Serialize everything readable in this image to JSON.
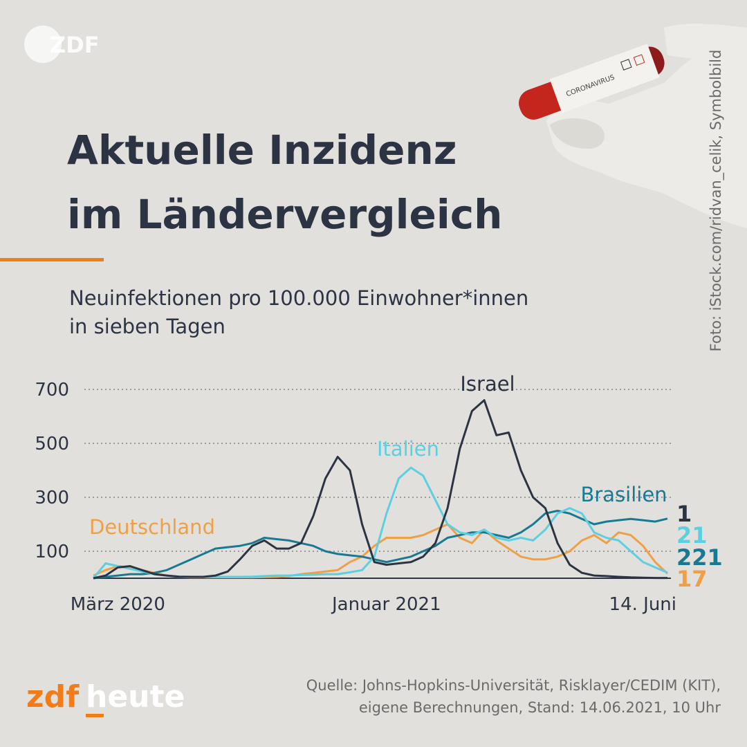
{
  "header": {
    "logo": "ZDF",
    "title": [
      "Aktuelle Inzidenz",
      "im Ländervergleich"
    ],
    "subtitle": [
      "Neuinfektionen pro 100.000 Einwohner*innen",
      "in sieben Tagen"
    ],
    "photo_credit": "Foto: iStock.com/ridvan_celik, Symbolbild",
    "photo_label": "CORONAVIRUS"
  },
  "chart_data": {
    "type": "line",
    "categories": [
      null,
      null,
      "März 2020",
      null,
      null,
      null,
      null,
      null,
      null,
      null,
      null,
      null,
      null,
      null,
      null,
      null,
      null,
      null,
      null,
      null,
      null,
      null,
      null,
      null,
      "Januar 2021",
      null,
      null,
      null,
      null,
      null,
      null,
      null,
      null,
      null,
      null,
      null,
      null,
      null,
      null,
      null,
      null,
      null,
      null,
      null,
      null,
      null,
      null,
      "14. Juni"
    ],
    "series": [
      {
        "name": "Israel",
        "color": "#2c3444",
        "values": [
          0,
          10,
          40,
          45,
          30,
          15,
          10,
          6,
          5,
          5,
          10,
          25,
          70,
          120,
          140,
          110,
          110,
          130,
          230,
          370,
          450,
          400,
          200,
          60,
          50,
          55,
          60,
          80,
          130,
          260,
          480,
          620,
          660,
          530,
          540,
          400,
          300,
          260,
          130,
          50,
          20,
          10,
          8,
          5,
          3,
          2,
          1,
          1
        ]
      },
      {
        "name": "Italien",
        "color": "#5ccfe0",
        "values": [
          0,
          55,
          45,
          35,
          25,
          15,
          10,
          6,
          5,
          5,
          5,
          5,
          5,
          6,
          8,
          10,
          10,
          12,
          13,
          15,
          15,
          22,
          30,
          80,
          240,
          370,
          410,
          380,
          290,
          200,
          170,
          160,
          180,
          150,
          140,
          150,
          140,
          180,
          240,
          260,
          240,
          170,
          150,
          140,
          100,
          60,
          40,
          21
        ]
      },
      {
        "name": "Brasilien",
        "color": "#177a92",
        "values": [
          0,
          5,
          10,
          15,
          15,
          20,
          30,
          50,
          70,
          90,
          110,
          115,
          120,
          130,
          150,
          145,
          140,
          130,
          120,
          100,
          90,
          85,
          80,
          70,
          60,
          70,
          80,
          100,
          120,
          150,
          160,
          170,
          170,
          160,
          150,
          170,
          200,
          240,
          250,
          240,
          220,
          200,
          210,
          215,
          220,
          215,
          210,
          221
        ]
      },
      {
        "name": "Deutschland",
        "color": "#f0a044",
        "values": [
          10,
          30,
          45,
          40,
          30,
          20,
          10,
          5,
          3,
          3,
          3,
          3,
          3,
          3,
          4,
          5,
          8,
          15,
          20,
          25,
          30,
          60,
          80,
          120,
          150,
          150,
          150,
          160,
          180,
          200,
          150,
          130,
          180,
          140,
          110,
          80,
          70,
          70,
          80,
          100,
          140,
          160,
          130,
          170,
          160,
          120,
          60,
          17
        ]
      }
    ],
    "ylim": [
      0,
      700
    ],
    "yticks": [
      100,
      300,
      500,
      700
    ],
    "grid": true
  },
  "footer": {
    "brand": [
      "zdf",
      "heute"
    ],
    "source": [
      "Quelle: Johns-Hopkins-Universität, Risklayer/CEDIM (KIT),",
      "eigene Berechnungen, Stand: 14.06.2021, 10 Uhr"
    ]
  }
}
